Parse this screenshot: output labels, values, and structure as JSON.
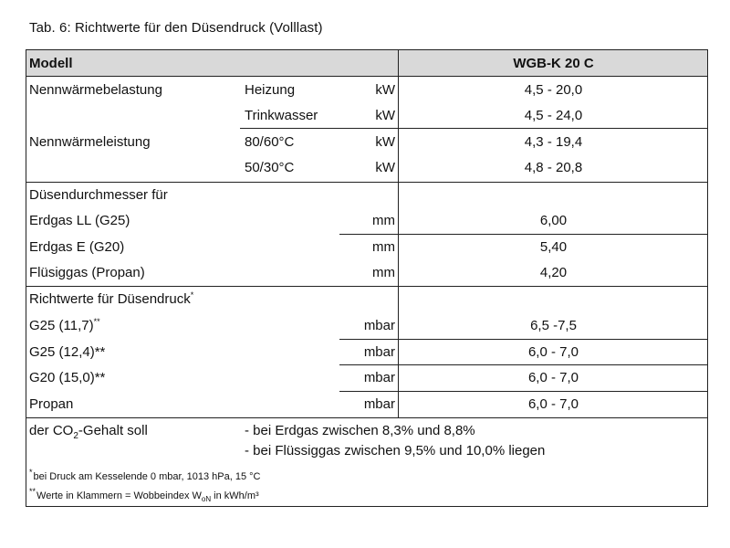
{
  "caption": "Tab. 6: Richtwerte für den Düsendruck (Volllast)",
  "header": {
    "model_label": "Modell",
    "model_value": "WGB-K 20 C"
  },
  "block1": {
    "label_belastung": "Nennwärmebelastung",
    "label_leistung": "Nennwärmeleistung",
    "rows": [
      {
        "sub": "Heizung",
        "unit": "kW",
        "value": "4,5 - 20,0"
      },
      {
        "sub": "Trinkwasser",
        "unit": "kW",
        "value": "4,5 - 24,0"
      },
      {
        "sub": "80/60°C",
        "unit": "kW",
        "value": "4,3 - 19,4"
      },
      {
        "sub": "50/30°C",
        "unit": "kW",
        "value": "4,8 - 20,8"
      }
    ]
  },
  "block2": {
    "title": "Düsendurchmesser für",
    "rows": [
      {
        "label": "Erdgas LL (G25)",
        "unit": "mm",
        "value": "6,00"
      },
      {
        "label": "Erdgas E (G20)",
        "unit": "mm",
        "value": "5,40"
      },
      {
        "label": "Flüsiggas (Propan)",
        "unit": "mm",
        "value": "4,20"
      }
    ]
  },
  "block3": {
    "title": "Richtwerte für Düsendruck",
    "title_mark": "*",
    "rows": [
      {
        "label": "G25 (11,7)",
        "mark": "**",
        "unit": "mbar",
        "value": "6,5 -7,5"
      },
      {
        "label": "G25 (12,4)**",
        "mark": "",
        "unit": "mbar",
        "value": "6,0 - 7,0"
      },
      {
        "label": "G20 (15,0)**",
        "mark": "",
        "unit": "mbar",
        "value": "6,0 - 7,0"
      },
      {
        "label": "Propan",
        "mark": "",
        "unit": "mbar",
        "value": "6,0 - 7,0"
      }
    ]
  },
  "co2": {
    "label_pre": "der CO",
    "label_sub": "2",
    "label_post": "-Gehalt soll",
    "line1": "- bei Erdgas zwischen 8,3% und 8,8%",
    "line2": "- bei Flüssiggas zwischen 9,5% und 10,0% liegen"
  },
  "footnotes": {
    "f1_mark": "*",
    "f1_text": "bei Druck am Kesselende 0 mbar, 1013 hPa, 15 °C",
    "f2_mark": "**",
    "f2_text_pre": "Werte in Klammern = Wobbeindex W",
    "f2_sub": "oN",
    "f2_text_post": " in kWh/m³"
  }
}
